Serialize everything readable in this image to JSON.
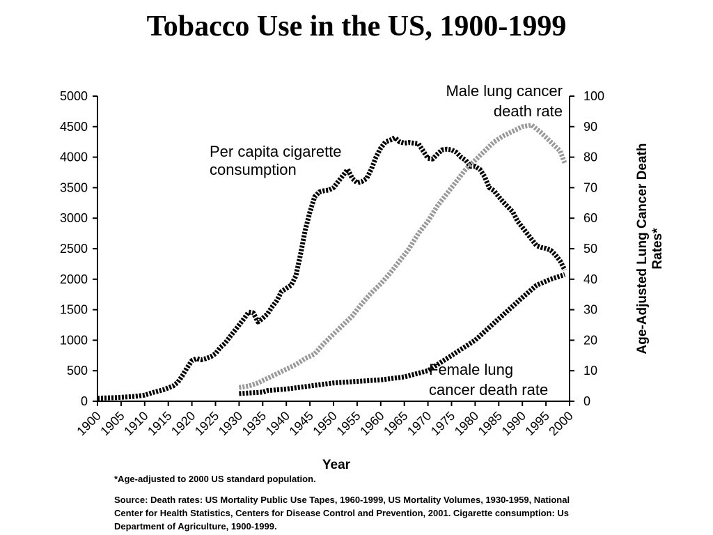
{
  "chart_data": {
    "type": "line",
    "title": "Tobacco Use in the US, 1900-1999",
    "xlabel": "Year",
    "ylabel_left": "",
    "ylabel_right": "Age-Adjusted Lung Cancer Death Rates*",
    "xlim": [
      1900,
      2000
    ],
    "ylim_left": [
      0,
      5000
    ],
    "ylim_right": [
      0,
      100
    ],
    "x_ticks": [
      "1900",
      "1905",
      "1910",
      "1915",
      "1920",
      "1925",
      "1930",
      "1935",
      "1940",
      "1945",
      "1950",
      "1955",
      "1960",
      "1965",
      "1970",
      "1975",
      "1980",
      "1985",
      "1990",
      "1995",
      "2000"
    ],
    "y_ticks_left": [
      "0",
      "500",
      "1000",
      "1500",
      "2000",
      "2500",
      "3000",
      "3500",
      "4000",
      "4500",
      "5000"
    ],
    "y_ticks_right": [
      "0",
      "10",
      "20",
      "30",
      "40",
      "50",
      "60",
      "70",
      "80",
      "90",
      "100"
    ],
    "grid": false,
    "legend": "none",
    "series": [
      {
        "name": "Per capita cigarette consumption",
        "axis": "left",
        "color": "#000000",
        "points": [
          [
            1900,
            50
          ],
          [
            1902,
            55
          ],
          [
            1904,
            60
          ],
          [
            1906,
            70
          ],
          [
            1908,
            80
          ],
          [
            1910,
            100
          ],
          [
            1912,
            150
          ],
          [
            1914,
            190
          ],
          [
            1916,
            250
          ],
          [
            1917,
            310
          ],
          [
            1918,
            420
          ],
          [
            1919,
            550
          ],
          [
            1920,
            665
          ],
          [
            1921,
            700
          ],
          [
            1922,
            680
          ],
          [
            1923,
            700
          ],
          [
            1924,
            730
          ],
          [
            1925,
            780
          ],
          [
            1926,
            880
          ],
          [
            1927,
            950
          ],
          [
            1928,
            1050
          ],
          [
            1929,
            1150
          ],
          [
            1930,
            1250
          ],
          [
            1931,
            1350
          ],
          [
            1932,
            1460
          ],
          [
            1933,
            1450
          ],
          [
            1934,
            1300
          ],
          [
            1935,
            1360
          ],
          [
            1936,
            1430
          ],
          [
            1937,
            1550
          ],
          [
            1938,
            1650
          ],
          [
            1939,
            1800
          ],
          [
            1940,
            1850
          ],
          [
            1941,
            1900
          ],
          [
            1942,
            2050
          ],
          [
            1943,
            2400
          ],
          [
            1944,
            2800
          ],
          [
            1945,
            3100
          ],
          [
            1946,
            3350
          ],
          [
            1947,
            3430
          ],
          [
            1948,
            3450
          ],
          [
            1949,
            3460
          ],
          [
            1950,
            3500
          ],
          [
            1951,
            3600
          ],
          [
            1952,
            3700
          ],
          [
            1953,
            3800
          ],
          [
            1954,
            3650
          ],
          [
            1955,
            3580
          ],
          [
            1956,
            3600
          ],
          [
            1957,
            3650
          ],
          [
            1958,
            3800
          ],
          [
            1959,
            4000
          ],
          [
            1960,
            4150
          ],
          [
            1961,
            4250
          ],
          [
            1962,
            4280
          ],
          [
            1963,
            4320
          ],
          [
            1964,
            4250
          ],
          [
            1965,
            4230
          ],
          [
            1966,
            4240
          ],
          [
            1967,
            4230
          ],
          [
            1968,
            4220
          ],
          [
            1969,
            4100
          ],
          [
            1970,
            3980
          ],
          [
            1971,
            3970
          ],
          [
            1972,
            4050
          ],
          [
            1973,
            4120
          ],
          [
            1974,
            4130
          ],
          [
            1975,
            4120
          ],
          [
            1976,
            4080
          ],
          [
            1977,
            4000
          ],
          [
            1978,
            3950
          ],
          [
            1979,
            3850
          ],
          [
            1980,
            3850
          ],
          [
            1981,
            3800
          ],
          [
            1982,
            3680
          ],
          [
            1983,
            3500
          ],
          [
            1984,
            3450
          ],
          [
            1985,
            3350
          ],
          [
            1986,
            3260
          ],
          [
            1987,
            3180
          ],
          [
            1988,
            3100
          ],
          [
            1989,
            2950
          ],
          [
            1990,
            2850
          ],
          [
            1991,
            2750
          ],
          [
            1992,
            2650
          ],
          [
            1993,
            2550
          ],
          [
            1994,
            2520
          ],
          [
            1995,
            2505
          ],
          [
            1996,
            2475
          ],
          [
            1997,
            2400
          ],
          [
            1998,
            2300
          ],
          [
            1999,
            2150
          ]
        ]
      },
      {
        "name": "Male lung cancer death rate",
        "axis": "right",
        "color": "#999999",
        "points": [
          [
            1930,
            4.5
          ],
          [
            1932,
            5
          ],
          [
            1934,
            6
          ],
          [
            1936,
            7.5
          ],
          [
            1938,
            9
          ],
          [
            1940,
            10.5
          ],
          [
            1942,
            12
          ],
          [
            1944,
            14
          ],
          [
            1946,
            15.5
          ],
          [
            1948,
            19
          ],
          [
            1950,
            22
          ],
          [
            1952,
            25
          ],
          [
            1954,
            28
          ],
          [
            1956,
            32
          ],
          [
            1958,
            35.5
          ],
          [
            1960,
            38.5
          ],
          [
            1962,
            42
          ],
          [
            1964,
            46
          ],
          [
            1966,
            50
          ],
          [
            1968,
            55
          ],
          [
            1970,
            59
          ],
          [
            1972,
            64
          ],
          [
            1974,
            68
          ],
          [
            1976,
            72
          ],
          [
            1978,
            76
          ],
          [
            1980,
            79
          ],
          [
            1982,
            82
          ],
          [
            1984,
            85
          ],
          [
            1986,
            87
          ],
          [
            1988,
            88.5
          ],
          [
            1990,
            90
          ],
          [
            1992,
            90.5
          ],
          [
            1994,
            88
          ],
          [
            1996,
            85
          ],
          [
            1998,
            82
          ],
          [
            1999,
            78
          ]
        ]
      },
      {
        "name": "Female lung cancer death rate",
        "axis": "right",
        "color": "#000000",
        "points": [
          [
            1930,
            2.5
          ],
          [
            1935,
            3
          ],
          [
            1936,
            3.5
          ],
          [
            1940,
            4
          ],
          [
            1945,
            5
          ],
          [
            1950,
            6
          ],
          [
            1955,
            6.5
          ],
          [
            1960,
            7
          ],
          [
            1965,
            8
          ],
          [
            1970,
            10
          ],
          [
            1972,
            12
          ],
          [
            1975,
            15
          ],
          [
            1980,
            20
          ],
          [
            1985,
            27
          ],
          [
            1990,
            34
          ],
          [
            1993,
            38
          ],
          [
            1996,
            40
          ],
          [
            1999,
            41.5
          ]
        ]
      }
    ],
    "annotations": [
      {
        "lines": [
          "Per capita cigarette",
          "consumption"
        ]
      },
      {
        "lines": [
          "Male lung cancer",
          "death rate"
        ]
      },
      {
        "lines": [
          "Female lung",
          "cancer death rate"
        ]
      }
    ]
  },
  "footnote": "*Age-adjusted to 2000 US standard population.",
  "source": "Source: Death rates: US Mortality Public Use Tapes, 1960-1999, US Mortality Volumes, 1930-1959, National Center for Health Statistics, Centers for Disease Control and Prevention, 2001. Cigarette consumption: Us Department of Agriculture, 1900-1999."
}
